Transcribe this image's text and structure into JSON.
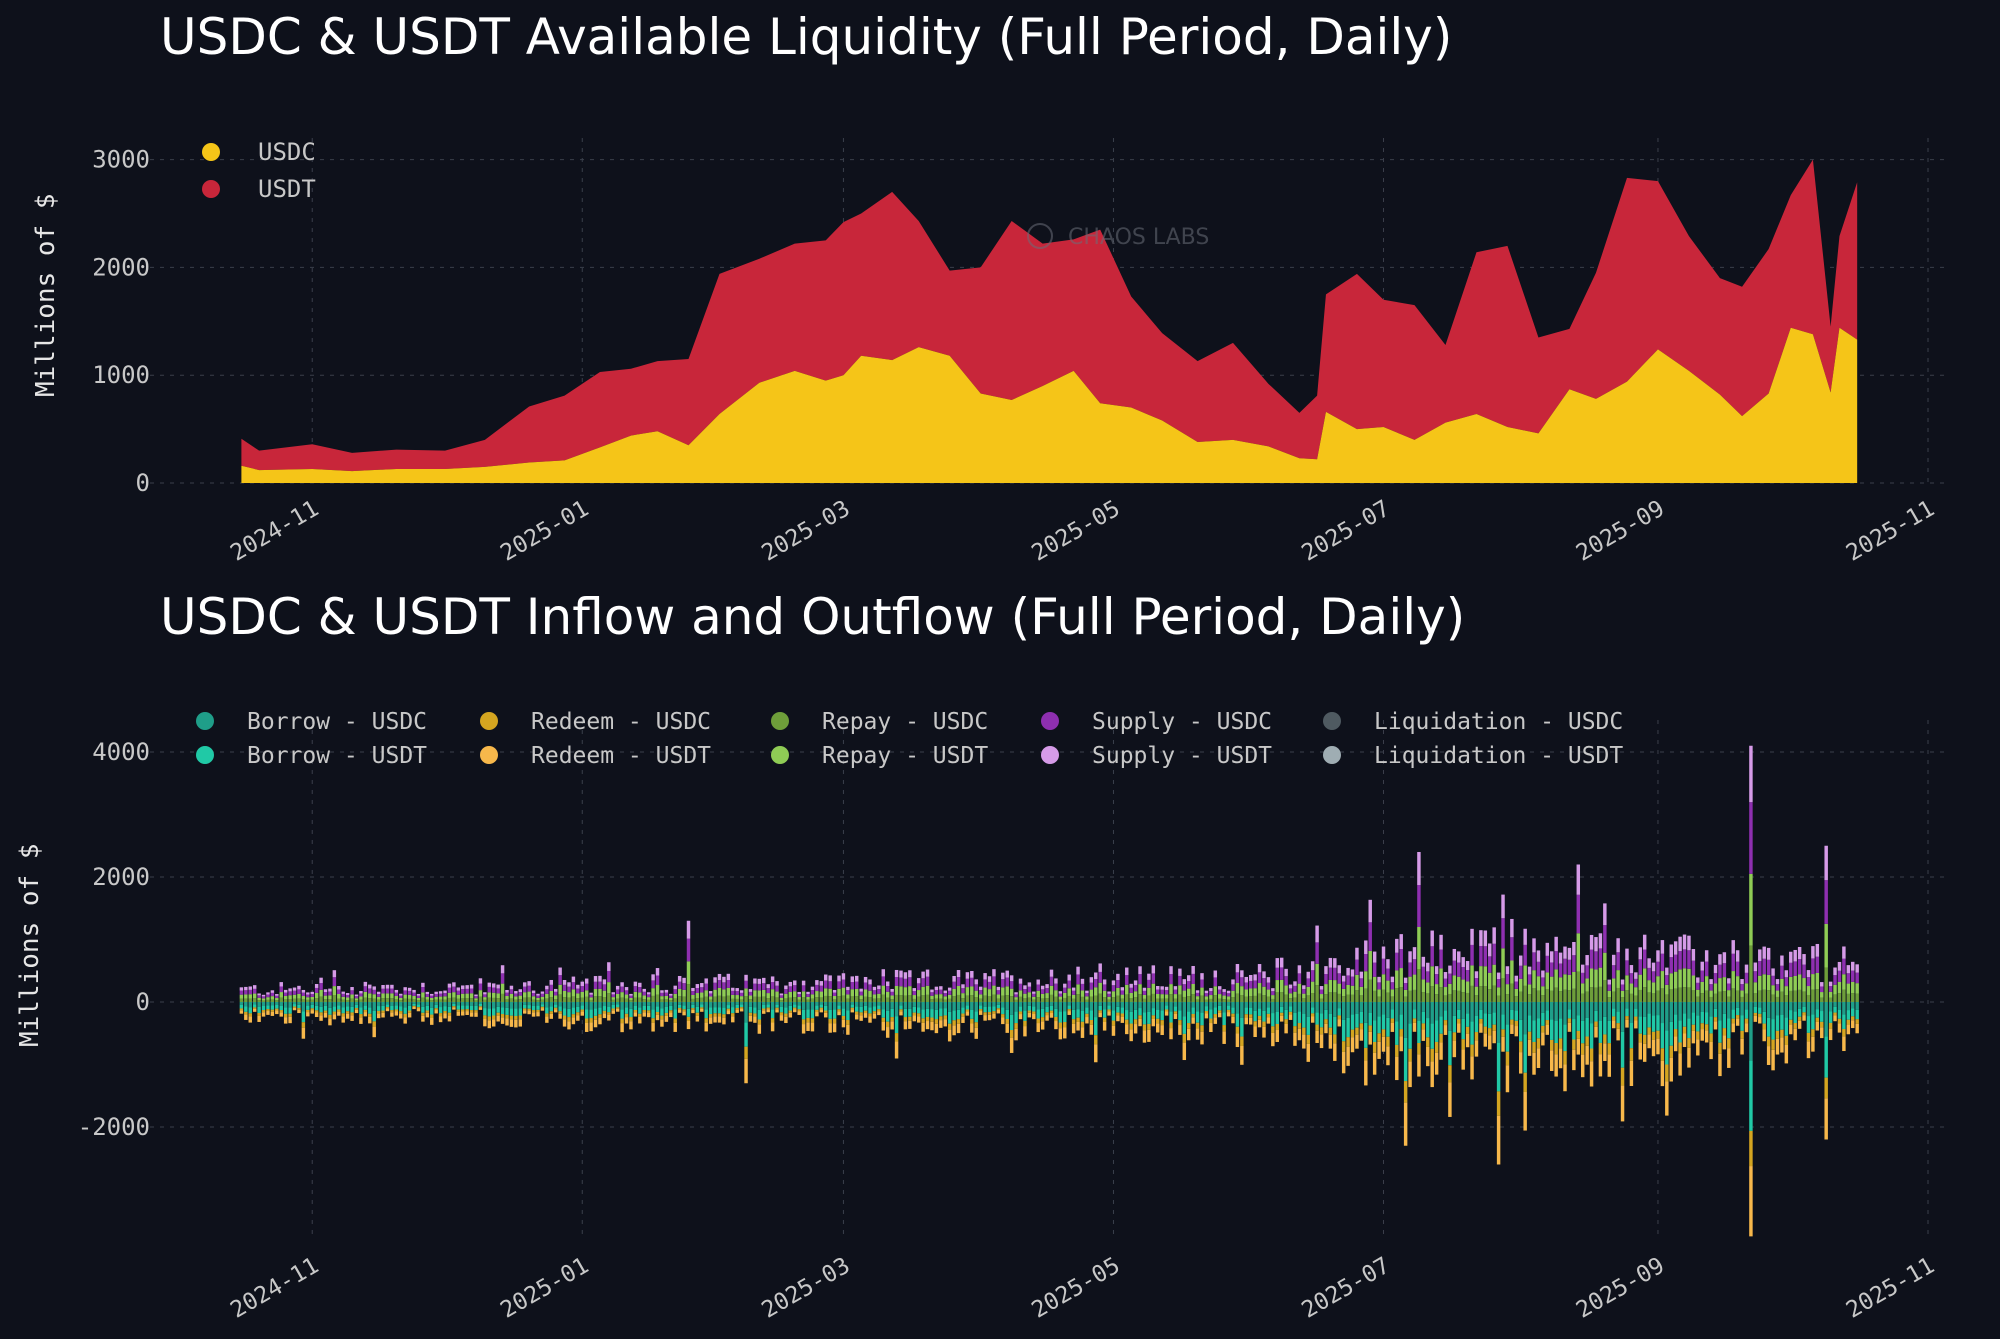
{
  "chart_data": [
    {
      "type": "area",
      "stacked": true,
      "title": "USDC & USDT Available Liquidity (Full Period, Daily)",
      "ylabel": "Millions of $",
      "xlabel": "",
      "ylim": [
        0,
        3200
      ],
      "yticks": [
        "0",
        "1000",
        "2000",
        "3000"
      ],
      "xticks": [
        "2024-11",
        "2025-01",
        "2025-03",
        "2025-05",
        "2025-07",
        "2025-09",
        "2025-11"
      ],
      "xlim": [
        "2024-10-01",
        "2025-11-01"
      ],
      "grid": true,
      "legend": "top-left",
      "watermark": "CHAOS LABS",
      "series": [
        {
          "name": "USDC",
          "color": "#f5c518",
          "points": [
            [
              "2024-10-16",
              160
            ],
            [
              "2024-10-20",
              120
            ],
            [
              "2024-11-01",
              130
            ],
            [
              "2024-11-10",
              110
            ],
            [
              "2024-11-20",
              130
            ],
            [
              "2024-12-01",
              130
            ],
            [
              "2024-12-10",
              150
            ],
            [
              "2024-12-20",
              190
            ],
            [
              "2024-12-28",
              210
            ],
            [
              "2025-01-05",
              330
            ],
            [
              "2025-01-12",
              440
            ],
            [
              "2025-01-18",
              480
            ],
            [
              "2025-01-25",
              350
            ],
            [
              "2025-02-01",
              640
            ],
            [
              "2025-02-10",
              930
            ],
            [
              "2025-02-18",
              1040
            ],
            [
              "2025-02-25",
              950
            ],
            [
              "2025-03-01",
              1000
            ],
            [
              "2025-03-05",
              1180
            ],
            [
              "2025-03-12",
              1140
            ],
            [
              "2025-03-18",
              1260
            ],
            [
              "2025-03-25",
              1180
            ],
            [
              "2025-04-01",
              830
            ],
            [
              "2025-04-08",
              770
            ],
            [
              "2025-04-15",
              900
            ],
            [
              "2025-04-22",
              1040
            ],
            [
              "2025-04-28",
              740
            ],
            [
              "2025-05-05",
              700
            ],
            [
              "2025-05-12",
              580
            ],
            [
              "2025-05-20",
              380
            ],
            [
              "2025-05-28",
              400
            ],
            [
              "2025-06-05",
              340
            ],
            [
              "2025-06-12",
              230
            ],
            [
              "2025-06-16",
              220
            ],
            [
              "2025-06-18",
              660
            ],
            [
              "2025-06-25",
              500
            ],
            [
              "2025-07-01",
              520
            ],
            [
              "2025-07-08",
              400
            ],
            [
              "2025-07-15",
              560
            ],
            [
              "2025-07-22",
              640
            ],
            [
              "2025-07-29",
              520
            ],
            [
              "2025-08-05",
              460
            ],
            [
              "2025-08-12",
              870
            ],
            [
              "2025-08-18",
              780
            ],
            [
              "2025-08-25",
              940
            ],
            [
              "2025-09-01",
              1240
            ],
            [
              "2025-09-08",
              1040
            ],
            [
              "2025-09-15",
              820
            ],
            [
              "2025-09-20",
              620
            ],
            [
              "2025-09-26",
              830
            ],
            [
              "2025-10-01",
              1440
            ],
            [
              "2025-10-06",
              1380
            ],
            [
              "2025-10-10",
              840
            ],
            [
              "2025-10-12",
              1440
            ],
            [
              "2025-10-16",
              1330
            ]
          ]
        },
        {
          "name": "USDT",
          "color": "#c8263a",
          "points": [
            [
              "2024-10-16",
              250
            ],
            [
              "2024-10-20",
              180
            ],
            [
              "2024-11-01",
              230
            ],
            [
              "2024-11-10",
              170
            ],
            [
              "2024-11-20",
              180
            ],
            [
              "2024-12-01",
              170
            ],
            [
              "2024-12-10",
              250
            ],
            [
              "2024-12-20",
              520
            ],
            [
              "2024-12-28",
              600
            ],
            [
              "2025-01-05",
              700
            ],
            [
              "2025-01-12",
              620
            ],
            [
              "2025-01-18",
              650
            ],
            [
              "2025-01-25",
              800
            ],
            [
              "2025-02-01",
              1300
            ],
            [
              "2025-02-10",
              1150
            ],
            [
              "2025-02-18",
              1180
            ],
            [
              "2025-02-25",
              1300
            ],
            [
              "2025-03-01",
              1420
            ],
            [
              "2025-03-05",
              1320
            ],
            [
              "2025-03-12",
              1560
            ],
            [
              "2025-03-18",
              1170
            ],
            [
              "2025-03-25",
              790
            ],
            [
              "2025-04-01",
              1170
            ],
            [
              "2025-04-08",
              1660
            ],
            [
              "2025-04-15",
              1320
            ],
            [
              "2025-04-22",
              1220
            ],
            [
              "2025-04-28",
              1610
            ],
            [
              "2025-05-05",
              1030
            ],
            [
              "2025-05-12",
              810
            ],
            [
              "2025-05-20",
              750
            ],
            [
              "2025-05-28",
              900
            ],
            [
              "2025-06-05",
              580
            ],
            [
              "2025-06-12",
              420
            ],
            [
              "2025-06-16",
              590
            ],
            [
              "2025-06-18",
              1090
            ],
            [
              "2025-06-25",
              1440
            ],
            [
              "2025-07-01",
              1180
            ],
            [
              "2025-07-08",
              1250
            ],
            [
              "2025-07-15",
              720
            ],
            [
              "2025-07-22",
              1500
            ],
            [
              "2025-07-29",
              1680
            ],
            [
              "2025-08-05",
              890
            ],
            [
              "2025-08-12",
              560
            ],
            [
              "2025-08-18",
              1170
            ],
            [
              "2025-08-25",
              1890
            ],
            [
              "2025-09-01",
              1560
            ],
            [
              "2025-09-08",
              1250
            ],
            [
              "2025-09-15",
              1080
            ],
            [
              "2025-09-20",
              1200
            ],
            [
              "2025-09-26",
              1340
            ],
            [
              "2025-10-01",
              1230
            ],
            [
              "2025-10-06",
              1620
            ],
            [
              "2025-10-10",
              610
            ],
            [
              "2025-10-12",
              850
            ],
            [
              "2025-10-16",
              1460
            ]
          ]
        }
      ]
    },
    {
      "type": "bar",
      "stacked": true,
      "title": "USDC & USDT Inflow and Outflow (Full Period, Daily)",
      "ylabel": "Millions of $",
      "xlabel": "",
      "ylim": [
        -3800,
        4300
      ],
      "yticks": [
        "-2000",
        "0",
        "2000",
        "4000"
      ],
      "xticks": [
        "2024-11",
        "2025-01",
        "2025-03",
        "2025-05",
        "2025-07",
        "2025-09",
        "2025-11"
      ],
      "xlim": [
        "2024-10-01",
        "2025-11-01"
      ],
      "grid": true,
      "legend": "top",
      "period": [
        "2024-10-16",
        "2025-10-16"
      ],
      "series": [
        {
          "name": "Borrow - USDC",
          "color": "#1f9e89"
        },
        {
          "name": "Borrow - USDT",
          "color": "#20c9a6"
        },
        {
          "name": "Redeem - USDC",
          "color": "#d4a520"
        },
        {
          "name": "Redeem - USDT",
          "color": "#f7b84b"
        },
        {
          "name": "Repay - USDC",
          "color": "#6e9e3a"
        },
        {
          "name": "Repay - USDT",
          "color": "#8fcc55"
        },
        {
          "name": "Supply - USDC",
          "color": "#8e2fb0"
        },
        {
          "name": "Supply - USDT",
          "color": "#d69be8"
        },
        {
          "name": "Liquidation - USDC",
          "color": "#4f5a61"
        },
        {
          "name": "Liquidation - USDT",
          "color": "#9fadb3"
        }
      ],
      "envelope": {
        "dates": [
          "2024-10-16",
          "2024-12-01",
          "2025-01-15",
          "2025-03-01",
          "2025-04-15",
          "2025-06-01",
          "2025-07-01",
          "2025-08-01",
          "2025-09-01",
          "2025-10-16"
        ],
        "inflow_typical": [
          250,
          300,
          350,
          400,
          450,
          500,
          900,
          1000,
          900,
          700
        ],
        "outflow_typical": [
          -300,
          -320,
          -400,
          -450,
          -500,
          -600,
          -1100,
          -1200,
          -1100,
          -700
        ]
      },
      "spikes": [
        {
          "date": "2025-01-25",
          "value": 1300
        },
        {
          "date": "2025-02-07",
          "value": -1300
        },
        {
          "date": "2025-07-06",
          "value": -2300
        },
        {
          "date": "2025-07-09",
          "value": 2400
        },
        {
          "date": "2025-07-27",
          "value": -2600
        },
        {
          "date": "2025-08-14",
          "value": 2200
        },
        {
          "date": "2025-09-22",
          "value": 4100
        },
        {
          "date": "2025-09-22",
          "value": -3750
        },
        {
          "date": "2025-10-09",
          "value": 2500
        },
        {
          "date": "2025-10-09",
          "value": -2200
        }
      ]
    }
  ]
}
